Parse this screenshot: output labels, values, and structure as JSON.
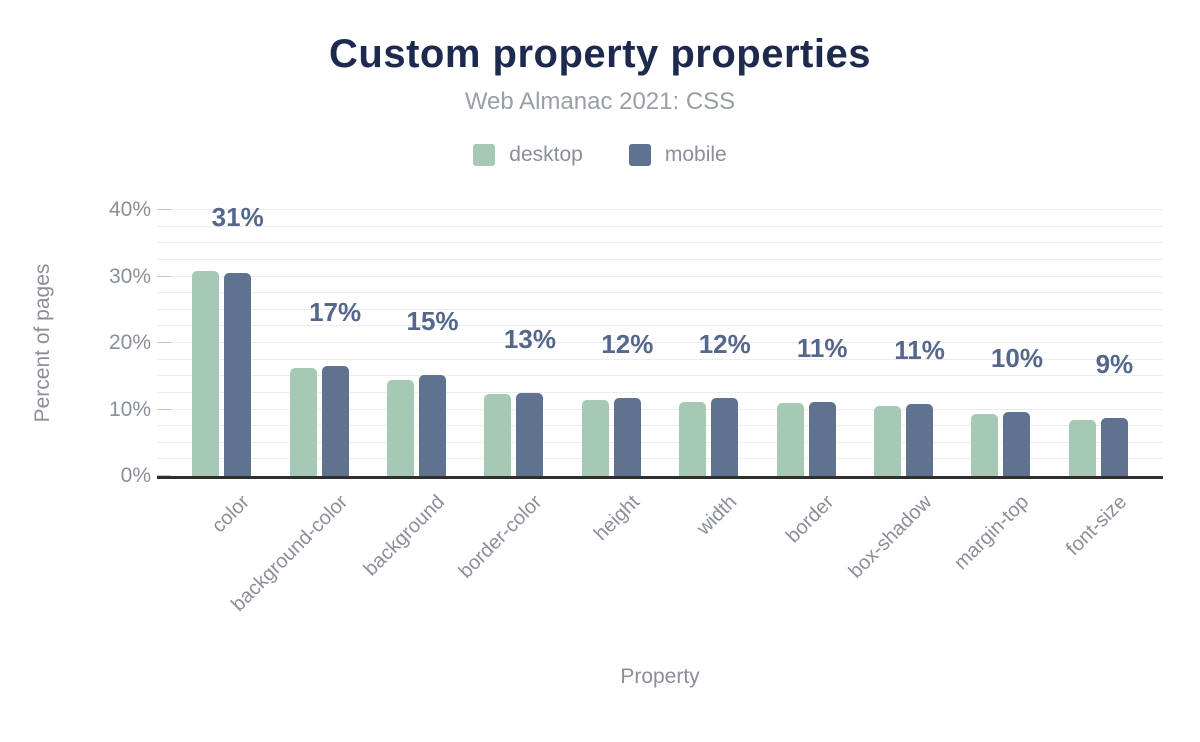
{
  "title": "Custom property properties",
  "subtitle": "Web Almanac 2021: CSS",
  "legend": [
    {
      "label": "desktop",
      "color": "#a5c9b4"
    },
    {
      "label": "mobile",
      "color": "#5f7290"
    }
  ],
  "colors": {
    "desktop": "#a5c9b4",
    "mobile": "#5f7290",
    "title": "#1d2a4e",
    "subtitle": "#9a9ea6",
    "axis_text": "#8a8f99",
    "value_label": "#55678a",
    "gridline": "#ececec",
    "axis_line": "#2f2f2f",
    "background": "#ffffff"
  },
  "chart_data": {
    "type": "bar",
    "title": "Custom property properties",
    "subtitle": "Web Almanac 2021: CSS",
    "xlabel": "Property",
    "ylabel": "Percent of pages",
    "categories": [
      "color",
      "background-color",
      "background",
      "border-color",
      "height",
      "width",
      "border",
      "box-shadow",
      "margin-top",
      "font-size"
    ],
    "series": [
      {
        "name": "desktop",
        "values": [
          30.9,
          16.2,
          14.4,
          12.3,
          11.4,
          11.2,
          11.0,
          10.5,
          9.3,
          8.4
        ]
      },
      {
        "name": "mobile",
        "values": [
          30.5,
          16.5,
          15.2,
          12.5,
          11.7,
          11.7,
          11.1,
          10.8,
          9.6,
          8.7
        ]
      }
    ],
    "bar_labels": [
      "31%",
      "17%",
      "15%",
      "13%",
      "12%",
      "12%",
      "11%",
      "11%",
      "10%",
      "9%"
    ],
    "yticks": [
      "0%",
      "10%",
      "20%",
      "30%",
      "40%"
    ],
    "ylim": [
      0,
      40
    ],
    "grid": "horizontal, minor every 2.5%",
    "legend_position": "top"
  }
}
